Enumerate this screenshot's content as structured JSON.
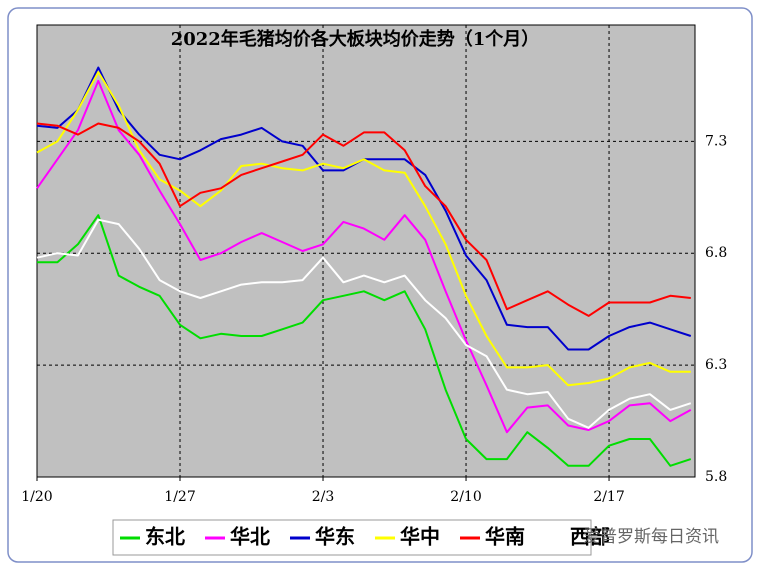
{
  "chart_data": {
    "type": "line",
    "title": "2022年毛猪均价各大板块均价走势（1个月）",
    "categories": [
      "1/20",
      null,
      null,
      null,
      null,
      null,
      null,
      "1/27",
      null,
      null,
      null,
      null,
      null,
      null,
      "2/3",
      null,
      null,
      null,
      null,
      null,
      null,
      "2/10",
      null,
      null,
      null,
      null,
      null,
      null,
      "2/17",
      null,
      null,
      null,
      null
    ],
    "series": [
      {
        "name": "东北",
        "color": "#00dd00",
        "values": [
          6.76,
          6.76,
          6.84,
          6.97,
          6.7,
          6.65,
          6.61,
          6.48,
          6.42,
          6.44,
          6.43,
          6.43,
          6.46,
          6.49,
          6.59,
          6.61,
          6.63,
          6.59,
          6.63,
          6.46,
          6.19,
          5.97,
          5.88,
          5.88,
          6.0,
          5.93,
          5.85,
          5.85,
          5.94,
          5.97,
          5.97,
          5.85,
          5.88
        ]
      },
      {
        "name": "华北",
        "color": "#ff00ff",
        "values": [
          7.09,
          7.22,
          7.35,
          7.57,
          7.35,
          7.24,
          7.08,
          6.93,
          6.77,
          6.8,
          6.85,
          6.89,
          6.85,
          6.81,
          6.84,
          6.94,
          6.91,
          6.86,
          6.97,
          6.86,
          6.63,
          6.41,
          6.21,
          6.0,
          6.11,
          6.12,
          6.03,
          6.01,
          6.05,
          6.12,
          6.13,
          6.05,
          6.1
        ]
      },
      {
        "name": "华东",
        "color": "#0000cc",
        "values": [
          7.37,
          7.36,
          7.44,
          7.63,
          7.44,
          7.33,
          7.24,
          7.22,
          7.26,
          7.31,
          7.33,
          7.36,
          7.3,
          7.28,
          7.17,
          7.17,
          7.22,
          7.22,
          7.22,
          7.15,
          6.99,
          6.79,
          6.68,
          6.48,
          6.47,
          6.47,
          6.37,
          6.37,
          6.43,
          6.47,
          6.49,
          6.46,
          6.43
        ]
      },
      {
        "name": "华中",
        "color": "#ffff00",
        "values": [
          7.25,
          7.3,
          7.44,
          7.61,
          7.46,
          7.26,
          7.13,
          7.08,
          7.01,
          7.08,
          7.19,
          7.2,
          7.18,
          7.17,
          7.2,
          7.18,
          7.22,
          7.17,
          7.16,
          7.01,
          6.84,
          6.61,
          6.43,
          6.29,
          6.29,
          6.3,
          6.21,
          6.22,
          6.24,
          6.29,
          6.31,
          6.27,
          6.27
        ]
      },
      {
        "name": "华南",
        "color": "#ff0000",
        "values": [
          7.38,
          7.37,
          7.33,
          7.38,
          7.36,
          7.3,
          7.2,
          7.01,
          7.07,
          7.09,
          7.15,
          7.18,
          7.21,
          7.24,
          7.33,
          7.28,
          7.34,
          7.34,
          7.26,
          7.1,
          7.01,
          6.86,
          6.77,
          6.55,
          6.59,
          6.63,
          6.57,
          6.52,
          6.58,
          6.58,
          6.58,
          6.61,
          6.6
        ]
      },
      {
        "name": "西部",
        "color": "#ffffff",
        "values": [
          6.78,
          6.8,
          6.79,
          6.95,
          6.93,
          6.82,
          6.68,
          6.63,
          6.6,
          6.63,
          6.66,
          6.67,
          6.67,
          6.68,
          6.78,
          6.67,
          6.7,
          6.67,
          6.7,
          6.59,
          6.51,
          6.39,
          6.34,
          6.19,
          6.17,
          6.18,
          6.06,
          6.02,
          6.1,
          6.15,
          6.17,
          6.1,
          6.13
        ]
      }
    ],
    "ylim": [
      5.8,
      7.82
    ],
    "yticks": [
      5.8,
      6.3,
      6.8,
      7.3
    ],
    "grid": true,
    "plot_background": "#c0c0c0",
    "watermark": "爱普罗斯每日资讯"
  }
}
